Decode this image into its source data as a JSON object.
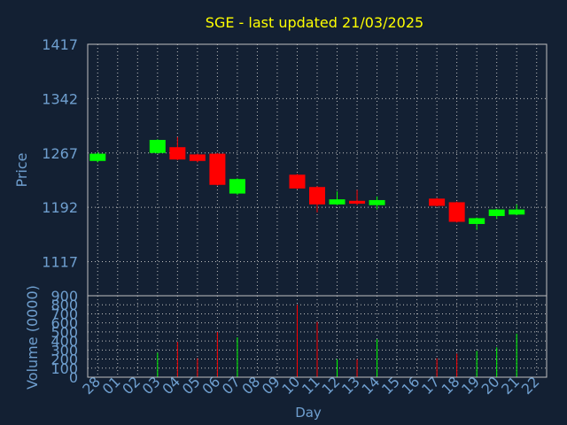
{
  "title": "SGE - last updated 21/03/2025",
  "chart_data": {
    "type": "candlestick",
    "title": "SGE - last updated 21/03/2025",
    "xlabel": "Day",
    "price_panel": {
      "ylabel": "Price",
      "ylim": [
        1070,
        1417
      ],
      "yticks": [
        1417,
        1342,
        1267,
        1192,
        1117
      ],
      "grid": true
    },
    "volume_panel": {
      "ylabel": "Volume (0000)",
      "ylim": [
        0,
        900
      ],
      "yticks": [
        0,
        100,
        200,
        300,
        400,
        500,
        600,
        700,
        800,
        900
      ],
      "grid": true
    },
    "x_ticks": [
      "28",
      "01",
      "02",
      "03",
      "04",
      "05",
      "06",
      "07",
      "08",
      "09",
      "10",
      "11",
      "12",
      "13",
      "14",
      "15",
      "16",
      "17",
      "18",
      "19",
      "20",
      "21",
      "22"
    ],
    "colors": {
      "up": "#00ff00",
      "down": "#ff0000",
      "background": "#132033",
      "grid": "#c0c0c0",
      "title": "#ffff00",
      "axis_text": "#6f9fcf"
    },
    "candles": [
      {
        "day": "28",
        "open": 1256,
        "close": 1266,
        "high": 1268,
        "low": 1254,
        "volume": 0
      },
      {
        "day": "03",
        "open": 1267,
        "close": 1285,
        "high": 1286,
        "low": 1266,
        "volume": 270
      },
      {
        "day": "04",
        "open": 1275,
        "close": 1258,
        "high": 1289,
        "low": 1257,
        "volume": 390
      },
      {
        "day": "05",
        "open": 1265,
        "close": 1256,
        "high": 1266,
        "low": 1254,
        "volume": 210
      },
      {
        "day": "06",
        "open": 1266,
        "close": 1223,
        "high": 1267,
        "low": 1222,
        "volume": 500
      },
      {
        "day": "07",
        "open": 1211,
        "close": 1231,
        "high": 1232,
        "low": 1209,
        "volume": 440
      },
      {
        "day": "10",
        "open": 1237,
        "close": 1218,
        "high": 1238,
        "low": 1217,
        "volume": 800
      },
      {
        "day": "11",
        "open": 1220,
        "close": 1196,
        "high": 1221,
        "low": 1185,
        "volume": 610
      },
      {
        "day": "12",
        "open": 1196,
        "close": 1203,
        "high": 1214,
        "low": 1195,
        "volume": 200
      },
      {
        "day": "13",
        "open": 1201,
        "close": 1197,
        "high": 1216,
        "low": 1195,
        "volume": 200
      },
      {
        "day": "14",
        "open": 1195,
        "close": 1202,
        "high": 1207,
        "low": 1189,
        "volume": 420
      },
      {
        "day": "17",
        "open": 1204,
        "close": 1194,
        "high": 1205,
        "low": 1193,
        "volume": 210
      },
      {
        "day": "18",
        "open": 1199,
        "close": 1172,
        "high": 1200,
        "low": 1171,
        "volume": 260
      },
      {
        "day": "19",
        "open": 1169,
        "close": 1177,
        "high": 1178,
        "low": 1161,
        "volume": 290
      },
      {
        "day": "20",
        "open": 1180,
        "close": 1189,
        "high": 1190,
        "low": 1176,
        "volume": 330
      },
      {
        "day": "21",
        "open": 1182,
        "close": 1189,
        "high": 1196,
        "low": 1181,
        "volume": 480
      }
    ]
  }
}
